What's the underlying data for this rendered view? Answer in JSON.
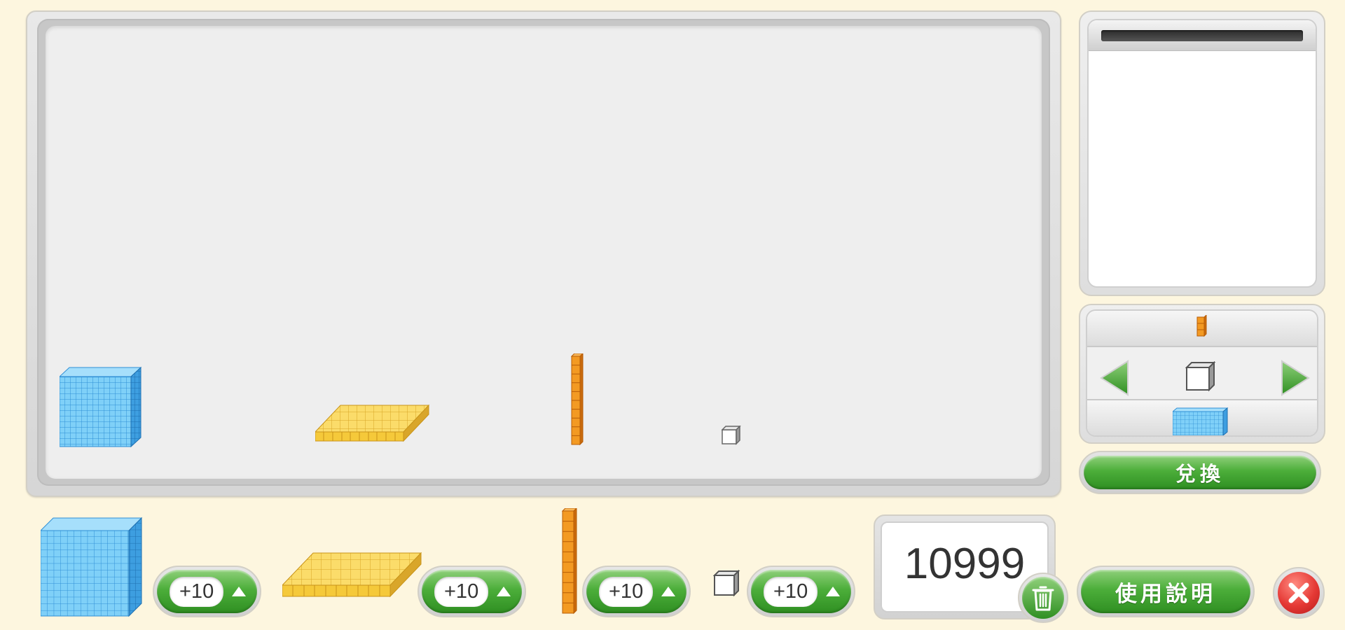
{
  "colors": {
    "background": "#fdf6df",
    "thousand_cube": "#6ec6f5",
    "hundred_flat": "#f7d04a",
    "ten_rod": "#f08a1c",
    "unit_cube": "#ffffff",
    "button_green": "#4cae3a",
    "close_red": "#e53935"
  },
  "board": {
    "blocks": [
      {
        "kind": "thousand-cube",
        "place": "thousands"
      },
      {
        "kind": "hundred-flat",
        "place": "hundreds"
      },
      {
        "kind": "ten-rod",
        "place": "tens"
      },
      {
        "kind": "unit-cube",
        "place": "ones"
      }
    ]
  },
  "exchange": {
    "top_icon": "ten-rod-icon",
    "center_icon": "unit-cube-icon",
    "bottom_icon": "thousand-cube-icon",
    "left_arrow": "left-arrow-icon",
    "right_arrow": "right-arrow-icon",
    "button_label": "兌換"
  },
  "toolbar": {
    "add_buttons": [
      {
        "block": "thousand-cube",
        "label": "+10"
      },
      {
        "block": "hundred-flat",
        "label": "+10"
      },
      {
        "block": "ten-rod",
        "label": "+10"
      },
      {
        "block": "unit-cube",
        "label": "+10"
      }
    ],
    "total_value": "10999",
    "help_label": "使用說明",
    "trash_icon": "trash-icon",
    "close_icon": "close-icon"
  }
}
